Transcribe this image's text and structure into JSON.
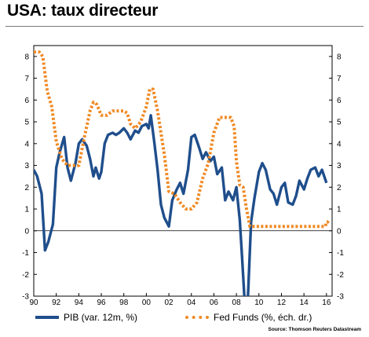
{
  "title": "USA: taux directeur",
  "source": "Source: Thomson Reuters Datastream",
  "colors": {
    "pib": "#1f4e8c",
    "fed": "#f08a24",
    "axis": "#000000"
  },
  "chart_data": {
    "type": "line",
    "title": "USA: taux directeur",
    "xlim": [
      1990,
      2016.5
    ],
    "ylim": [
      -3,
      8.5
    ],
    "x_ticks": [
      1990,
      1992,
      1994,
      1996,
      1998,
      2000,
      2002,
      2004,
      2006,
      2008,
      2010,
      2012,
      2014,
      2016
    ],
    "x_tick_labels": [
      "90",
      "92",
      "94",
      "96",
      "98",
      "00",
      "02",
      "04",
      "06",
      "08",
      "10",
      "12",
      "14",
      "16"
    ],
    "y_ticks": [
      -3,
      -2,
      -1,
      0,
      1,
      2,
      3,
      4,
      5,
      6,
      7,
      8
    ],
    "y_tick_labels": [
      "-3",
      "-2",
      "-1",
      "0",
      "1",
      "2",
      "3",
      "4",
      "5",
      "6",
      "7",
      "8"
    ],
    "legend_position": "bottom",
    "series": [
      {
        "name": "PIB (var. 12m, %)",
        "style": "solid",
        "x": [
          1990.0,
          1990.3,
          1990.7,
          1991.0,
          1991.3,
          1991.7,
          1992.0,
          1992.3,
          1992.7,
          1993.0,
          1993.3,
          1993.7,
          1994.0,
          1994.3,
          1994.7,
          1995.0,
          1995.3,
          1995.5,
          1995.8,
          1996.0,
          1996.3,
          1996.6,
          1997.0,
          1997.3,
          1997.6,
          1998.0,
          1998.3,
          1998.6,
          1999.0,
          1999.3,
          1999.6,
          2000.0,
          2000.2,
          2000.4,
          2000.7,
          2001.0,
          2001.3,
          2001.6,
          2002.0,
          2002.3,
          2002.7,
          2003.0,
          2003.3,
          2003.7,
          2004.0,
          2004.3,
          2004.7,
          2005.0,
          2005.3,
          2005.7,
          2006.0,
          2006.3,
          2006.7,
          2007.0,
          2007.3,
          2007.7,
          2008.0,
          2008.3,
          2008.5,
          2008.7,
          2009.0,
          2009.3,
          2009.6,
          2010.0,
          2010.3,
          2010.6,
          2011.0,
          2011.3,
          2011.6,
          2012.0,
          2012.3,
          2012.6,
          2013.0,
          2013.3,
          2013.6,
          2014.0,
          2014.3,
          2014.6,
          2015.0,
          2015.3,
          2015.6,
          2016.0
        ],
        "values": [
          2.8,
          2.5,
          1.7,
          -0.9,
          -0.5,
          0.3,
          2.9,
          3.6,
          4.3,
          2.9,
          2.3,
          3.1,
          4.0,
          4.2,
          3.9,
          3.3,
          2.5,
          2.9,
          2.4,
          2.7,
          4.0,
          4.4,
          4.5,
          4.4,
          4.5,
          4.7,
          4.5,
          4.2,
          4.6,
          4.5,
          4.8,
          4.9,
          4.7,
          5.3,
          4.1,
          2.8,
          1.2,
          0.6,
          0.2,
          1.4,
          1.9,
          2.2,
          1.7,
          2.8,
          4.3,
          4.4,
          3.8,
          3.3,
          3.6,
          3.2,
          3.4,
          2.6,
          2.9,
          1.4,
          1.8,
          1.4,
          2.0,
          0.5,
          -1.2,
          -3.0,
          -3.3,
          0.4,
          1.5,
          2.7,
          3.1,
          2.8,
          1.9,
          1.7,
          1.2,
          2.0,
          2.2,
          1.3,
          1.2,
          1.6,
          2.3,
          1.9,
          2.4,
          2.8,
          2.9,
          2.5,
          2.8,
          2.2
        ]
      },
      {
        "name": "Fed Funds (%, éch. dr.)",
        "style": "dotted",
        "x": [
          1990.0,
          1990.5,
          1990.8,
          1991.2,
          1991.6,
          1992.0,
          1992.5,
          1993.0,
          1993.5,
          1994.0,
          1994.5,
          1995.0,
          1995.3,
          1995.6,
          1996.0,
          1996.5,
          1997.0,
          1997.5,
          1998.0,
          1998.3,
          1998.6,
          1999.0,
          1999.5,
          2000.0,
          2000.3,
          2000.6,
          2001.0,
          2001.3,
          2001.6,
          2002.0,
          2002.5,
          2003.0,
          2003.5,
          2004.0,
          2004.5,
          2005.0,
          2005.5,
          2006.0,
          2006.5,
          2007.0,
          2007.5,
          2007.8,
          2008.0,
          2008.3,
          2008.6,
          2008.9,
          2009.2,
          2010.0,
          2011.0,
          2012.0,
          2013.0,
          2014.0,
          2015.0,
          2015.9,
          2016.0,
          2016.1,
          2016.2
        ],
        "values": [
          8.2,
          8.2,
          8.0,
          6.4,
          5.7,
          4.1,
          3.3,
          3.0,
          3.0,
          3.0,
          4.3,
          5.5,
          5.9,
          5.8,
          5.3,
          5.3,
          5.5,
          5.5,
          5.5,
          5.4,
          4.9,
          4.7,
          5.0,
          5.7,
          6.5,
          6.5,
          5.5,
          4.5,
          3.5,
          1.8,
          1.7,
          1.3,
          1.0,
          1.0,
          1.3,
          2.4,
          3.1,
          4.5,
          5.2,
          5.2,
          5.2,
          4.8,
          3.2,
          2.1,
          2.0,
          1.0,
          0.2,
          0.2,
          0.2,
          0.2,
          0.2,
          0.2,
          0.2,
          0.2,
          0.4,
          0.4,
          0.5
        ]
      }
    ]
  }
}
